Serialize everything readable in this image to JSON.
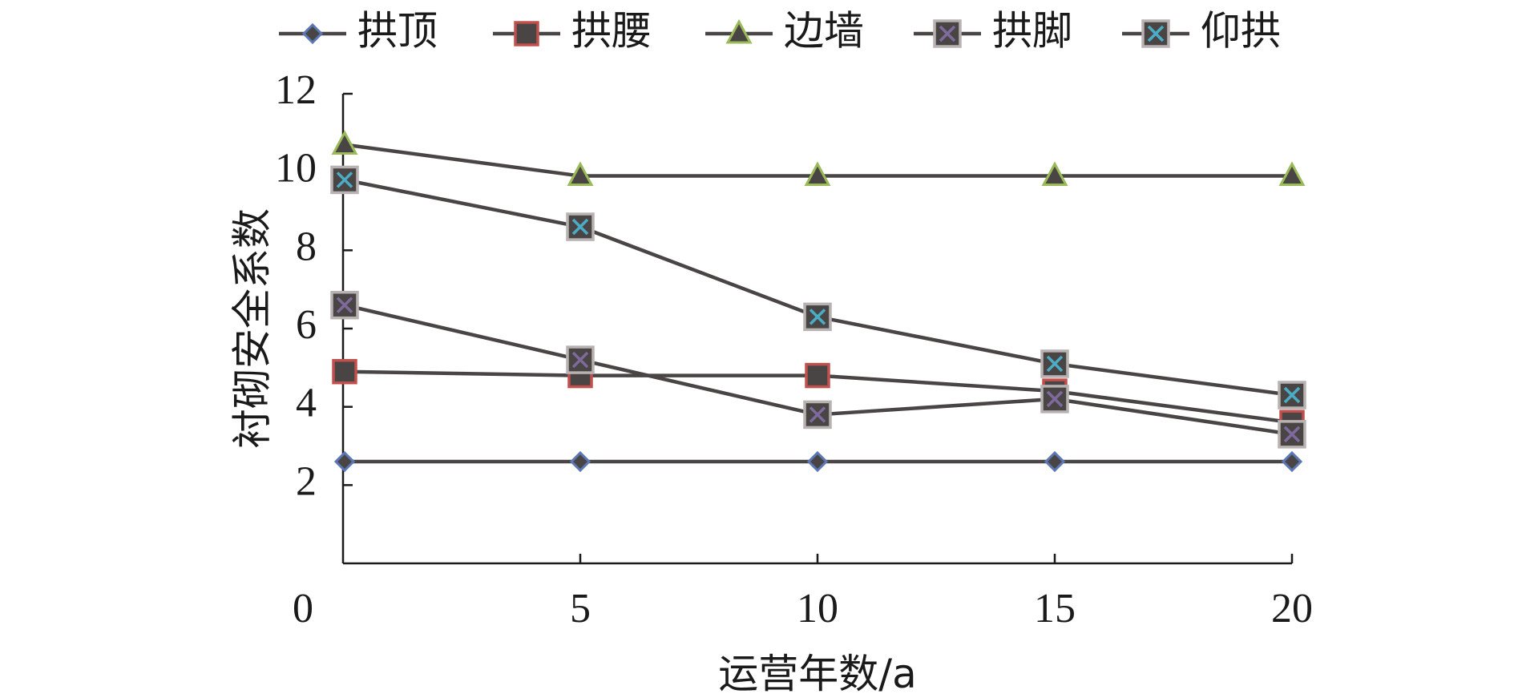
{
  "chart_data": {
    "type": "line",
    "title": "",
    "xlabel": "运营年数/a",
    "ylabel": "衬砌安全系数",
    "xlim": [
      0,
      20
    ],
    "ylim": [
      0,
      12
    ],
    "x_ticks": [
      "0",
      "5",
      "10",
      "15",
      "20"
    ],
    "y_ticks": [
      "2",
      "4",
      "6",
      "8",
      "10",
      "12"
    ],
    "x": [
      0,
      5,
      10,
      15,
      20
    ],
    "legend_position": "top",
    "grid": false,
    "series": [
      {
        "name": "拱顶",
        "marker": "diamond",
        "color": "#5b77b6",
        "values": [
          2.6,
          2.6,
          2.6,
          2.6,
          2.6
        ]
      },
      {
        "name": "拱腰",
        "marker": "square",
        "color": "#c0504d",
        "values": [
          4.9,
          4.8,
          4.8,
          4.4,
          3.6
        ]
      },
      {
        "name": "边墙",
        "marker": "triangle",
        "color": "#9bbb59",
        "values": [
          10.7,
          9.9,
          9.9,
          9.9,
          9.9
        ]
      },
      {
        "name": "拱脚",
        "marker": "x-square",
        "color": "#7e6a9c",
        "values": [
          6.6,
          5.2,
          3.8,
          4.2,
          3.3
        ]
      },
      {
        "name": "仰拱",
        "marker": "x-square",
        "color": "#4bacc6",
        "values": [
          9.8,
          8.6,
          6.3,
          5.1,
          4.3
        ]
      }
    ]
  }
}
